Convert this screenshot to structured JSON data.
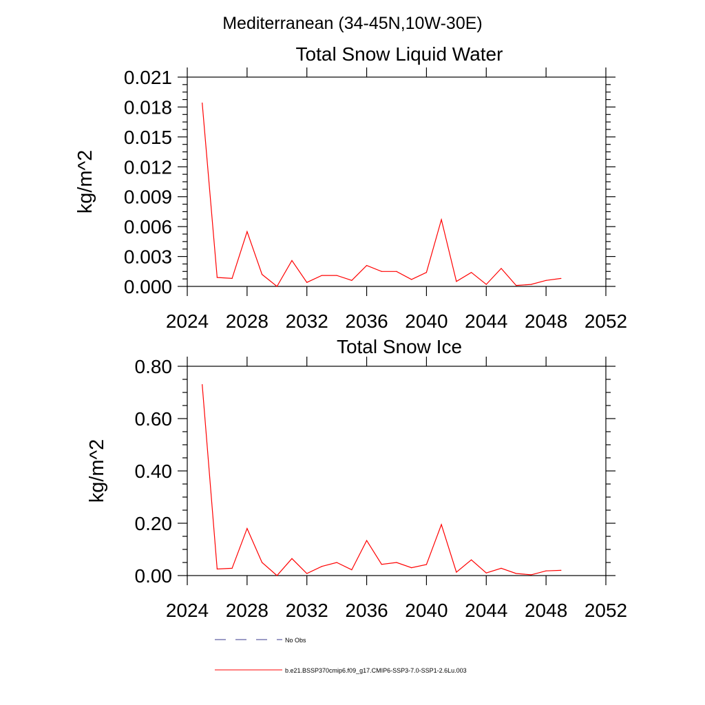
{
  "figure": {
    "title": "Mediterranean (34-45N,10W-30E)"
  },
  "chart_data": [
    {
      "type": "line",
      "title": "Total Snow Liquid Water",
      "xlabel": "",
      "ylabel": "kg/m^2",
      "xlim": [
        2024,
        2052
      ],
      "ylim": [
        0,
        0.021
      ],
      "x_ticks": [
        "2024",
        "2028",
        "2032",
        "2036",
        "2040",
        "2044",
        "2048",
        "2052"
      ],
      "y_ticks": [
        "0.000",
        "0.003",
        "0.006",
        "0.009",
        "0.012",
        "0.015",
        "0.018",
        "0.021"
      ],
      "grid": false,
      "series": [
        {
          "name": "b.e21.BSSP370cmip6.f09_g17.CMIP6-SSP3-7.0-SSP1-2.6Lu.003",
          "color": "#ff0000",
          "x": [
            2025,
            2026,
            2027,
            2028,
            2029,
            2030,
            2031,
            2032,
            2033,
            2034,
            2035,
            2036,
            2037,
            2038,
            2039,
            2040,
            2041,
            2042,
            2043,
            2044,
            2045,
            2046,
            2047,
            2048,
            2049
          ],
          "y": [
            0.0184,
            0.0009,
            0.0008,
            0.0055,
            0.0012,
            0.0,
            0.0026,
            0.0004,
            0.0011,
            0.0011,
            0.0006,
            0.0021,
            0.0015,
            0.0015,
            0.0007,
            0.0014,
            0.0067,
            0.0005,
            0.0014,
            0.0002,
            0.0018,
            0.0001,
            0.0002,
            0.0006,
            0.0008
          ]
        }
      ]
    },
    {
      "type": "line",
      "title": "Total Snow Ice",
      "xlabel": "",
      "ylabel": "kg/m^2",
      "xlim": [
        2024,
        2052
      ],
      "ylim": [
        0,
        0.8
      ],
      "x_ticks": [
        "2024",
        "2028",
        "2032",
        "2036",
        "2040",
        "2044",
        "2048",
        "2052"
      ],
      "y_ticks": [
        "0.00",
        "0.20",
        "0.40",
        "0.60",
        "0.80"
      ],
      "grid": false,
      "series": [
        {
          "name": "b.e21.BSSP370cmip6.f09_g17.CMIP6-SSP3-7.0-SSP1-2.6Lu.003",
          "color": "#ff0000",
          "x": [
            2025,
            2026,
            2027,
            2028,
            2029,
            2030,
            2031,
            2032,
            2033,
            2034,
            2035,
            2036,
            2037,
            2038,
            2039,
            2040,
            2041,
            2042,
            2043,
            2044,
            2045,
            2046,
            2047,
            2048,
            2049
          ],
          "y": [
            0.73,
            0.025,
            0.028,
            0.18,
            0.05,
            0.0,
            0.065,
            0.008,
            0.035,
            0.05,
            0.022,
            0.134,
            0.043,
            0.05,
            0.03,
            0.042,
            0.195,
            0.013,
            0.06,
            0.01,
            0.028,
            0.008,
            0.003,
            0.018,
            0.02
          ]
        }
      ]
    }
  ],
  "legend": {
    "items": [
      {
        "label": "No Obs",
        "color": "#3a3a8c",
        "style": "dashed"
      },
      {
        "label": "b.e21.BSSP370cmip6.f09_g17.CMIP6-SSP3-7.0-SSP1-2.6Lu.003",
        "color": "#ff0000",
        "style": "solid"
      }
    ]
  }
}
